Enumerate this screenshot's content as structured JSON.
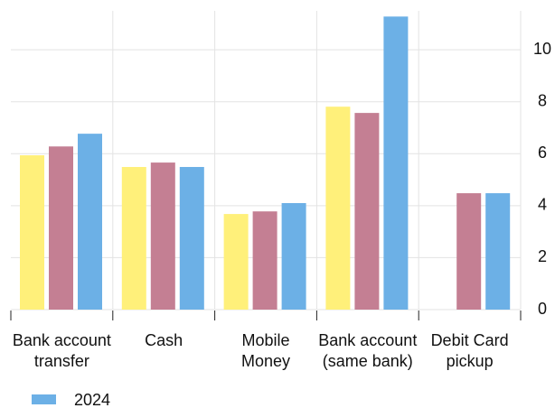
{
  "chart_data": {
    "type": "bar",
    "categories": [
      "Bank account\ntransfer",
      "Cash",
      "Mobile\nMoney",
      "Bank account\n(same bank)",
      "Debit Card\npickup"
    ],
    "series": [
      {
        "color": "#fff07a",
        "values": [
          5.94,
          5.49,
          3.68,
          7.81,
          null
        ]
      },
      {
        "color": "#c47f93",
        "values": [
          6.28,
          5.66,
          3.78,
          7.57,
          4.48
        ]
      },
      {
        "name": "2024",
        "color": "#6cb0e6",
        "values": [
          6.77,
          5.49,
          4.1,
          11.28,
          4.48
        ]
      }
    ],
    "ylim": [
      0,
      11.5
    ],
    "yticks": [
      0,
      2,
      4,
      6,
      8,
      10
    ],
    "grid": true,
    "y_axis_side": "right"
  }
}
